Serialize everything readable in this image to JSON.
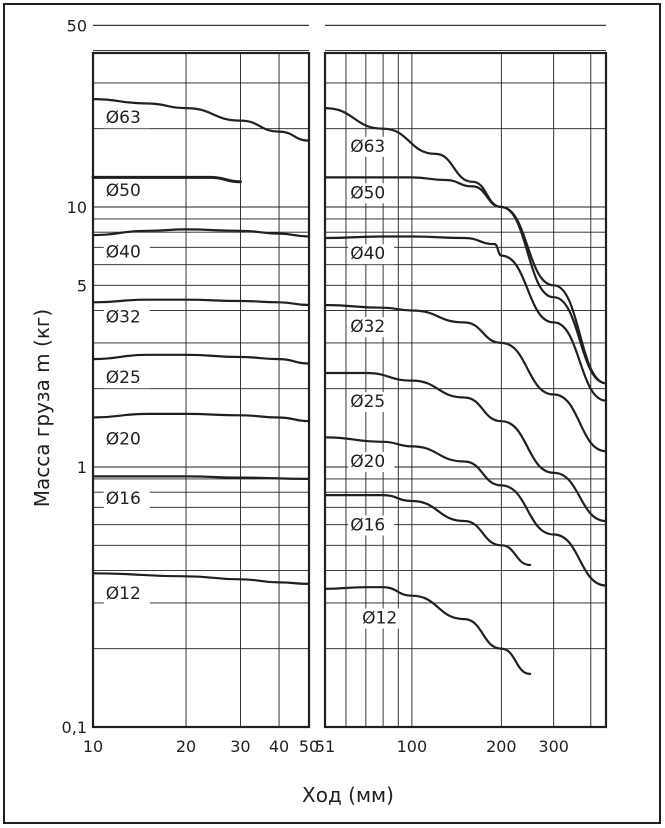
{
  "chart_data": {
    "type": "line",
    "title": "",
    "xlabel": "Ход (мм)",
    "ylabel": "Масса груза m (кг)",
    "y_scale": "log",
    "ylim": [
      0.1,
      50
    ],
    "y_ticks": [
      {
        "value": 0.1,
        "label": "0,1"
      },
      {
        "value": 1,
        "label": "1"
      },
      {
        "value": 5,
        "label": "5"
      },
      {
        "value": 10,
        "label": "10"
      },
      {
        "value": 50,
        "label": "50"
      }
    ],
    "grid": true,
    "panels": [
      {
        "id": "left",
        "x_scale": "log",
        "xlim": [
          10,
          50
        ],
        "x_ticks": [
          {
            "value": 10,
            "label": "10"
          },
          {
            "value": 20,
            "label": "20"
          },
          {
            "value": 30,
            "label": "30"
          },
          {
            "value": 40,
            "label": "40"
          },
          {
            "value": 50,
            "label": "50"
          }
        ],
        "series": [
          {
            "name": "Ø63",
            "x": [
              10,
              15,
              20,
              30,
              40,
              50
            ],
            "y": [
              26,
              25,
              24,
              21.5,
              19.5,
              18
            ]
          },
          {
            "name": "Ø50",
            "x": [
              10,
              24,
              30
            ],
            "y": [
              13,
              13,
              12.5
            ]
          },
          {
            "name": "Ø40",
            "x": [
              10,
              15,
              20,
              30,
              40,
              50
            ],
            "y": [
              7.8,
              8.1,
              8.2,
              8.1,
              7.9,
              7.7
            ]
          },
          {
            "name": "Ø32",
            "x": [
              10,
              15,
              20,
              30,
              40,
              50
            ],
            "y": [
              4.3,
              4.4,
              4.4,
              4.35,
              4.3,
              4.2
            ]
          },
          {
            "name": "Ø25",
            "x": [
              10,
              15,
              20,
              30,
              40,
              50
            ],
            "y": [
              2.6,
              2.7,
              2.7,
              2.65,
              2.6,
              2.5
            ]
          },
          {
            "name": "Ø20",
            "x": [
              10,
              15,
              20,
              30,
              40,
              50
            ],
            "y": [
              1.55,
              1.6,
              1.6,
              1.58,
              1.55,
              1.5
            ]
          },
          {
            "name": "Ø16",
            "x": [
              10,
              20,
              30,
              50
            ],
            "y": [
              0.92,
              0.92,
              0.91,
              0.9
            ]
          },
          {
            "name": "Ø12",
            "x": [
              10,
              20,
              30,
              40,
              50
            ],
            "y": [
              0.39,
              0.38,
              0.37,
              0.36,
              0.355
            ]
          }
        ]
      },
      {
        "id": "right",
        "x_scale": "log",
        "xlim": [
          51,
          450
        ],
        "x_ticks": [
          {
            "value": 51,
            "label": "51"
          },
          {
            "value": 100,
            "label": "100"
          },
          {
            "value": 200,
            "label": "200"
          },
          {
            "value": 300,
            "label": "300"
          }
        ],
        "series": [
          {
            "name": "Ø63",
            "x": [
              51,
              80,
              120,
              160,
              200,
              300,
              450
            ],
            "y": [
              24,
              20,
              16,
              12.5,
              10,
              4.5,
              2.1
            ]
          },
          {
            "name": "Ø50",
            "x": [
              51,
              100,
              130,
              160,
              200,
              300,
              450
            ],
            "y": [
              13,
              13,
              12.7,
              12,
              10,
              5,
              2.1
            ]
          },
          {
            "name": "Ø40",
            "x": [
              51,
              80,
              100,
              150,
              190,
              200,
              300,
              450
            ],
            "y": [
              7.6,
              7.7,
              7.7,
              7.6,
              7.2,
              6.5,
              3.6,
              1.8
            ]
          },
          {
            "name": "Ø32",
            "x": [
              51,
              80,
              100,
              150,
              200,
              300,
              450
            ],
            "y": [
              4.2,
              4.1,
              4.0,
              3.6,
              3.0,
              1.9,
              1.15
            ]
          },
          {
            "name": "Ø25",
            "x": [
              51,
              70,
              100,
              150,
              200,
              300,
              450
            ],
            "y": [
              2.3,
              2.3,
              2.15,
              1.85,
              1.5,
              0.95,
              0.62
            ]
          },
          {
            "name": "Ø20",
            "x": [
              51,
              80,
              100,
              150,
              200,
              300,
              450
            ],
            "y": [
              1.3,
              1.25,
              1.2,
              1.05,
              0.85,
              0.55,
              0.35
            ]
          },
          {
            "name": "Ø16",
            "x": [
              51,
              80,
              100,
              150,
              200,
              250
            ],
            "y": [
              0.78,
              0.78,
              0.74,
              0.62,
              0.5,
              0.42
            ]
          },
          {
            "name": "Ø12",
            "x": [
              51,
              70,
              80,
              100,
              150,
              200,
              250
            ],
            "y": [
              0.34,
              0.345,
              0.345,
              0.32,
              0.26,
              0.2,
              0.16
            ]
          }
        ]
      }
    ]
  },
  "curve_labels": [
    {
      "panel": "left",
      "text": "Ø63",
      "x": 11.0,
      "y": 21.0
    },
    {
      "panel": "left",
      "text": "Ø50",
      "x": 11.0,
      "y": 11.0
    },
    {
      "panel": "left",
      "text": "Ø40",
      "x": 11.0,
      "y": 6.4
    },
    {
      "panel": "left",
      "text": "Ø32",
      "x": 11.0,
      "y": 3.6
    },
    {
      "panel": "left",
      "text": "Ø25",
      "x": 11.0,
      "y": 2.1
    },
    {
      "panel": "left",
      "text": "Ø20",
      "x": 11.0,
      "y": 1.22
    },
    {
      "panel": "left",
      "text": "Ø16",
      "x": 11.0,
      "y": 0.72
    },
    {
      "panel": "left",
      "text": "Ø12",
      "x": 11.0,
      "y": 0.31
    },
    {
      "panel": "right",
      "text": "Ø63",
      "x": 62,
      "y": 16.3
    },
    {
      "panel": "right",
      "text": "Ø50",
      "x": 62,
      "y": 10.8
    },
    {
      "panel": "right",
      "text": "Ø40",
      "x": 62,
      "y": 6.3
    },
    {
      "panel": "right",
      "text": "Ø32",
      "x": 62,
      "y": 3.3
    },
    {
      "panel": "right",
      "text": "Ø25",
      "x": 62,
      "y": 1.7
    },
    {
      "panel": "right",
      "text": "Ø20",
      "x": 62,
      "y": 1.0
    },
    {
      "panel": "right",
      "text": "Ø16",
      "x": 62,
      "y": 0.57
    },
    {
      "panel": "right",
      "text": "Ø12",
      "x": 68,
      "y": 0.25
    }
  ]
}
